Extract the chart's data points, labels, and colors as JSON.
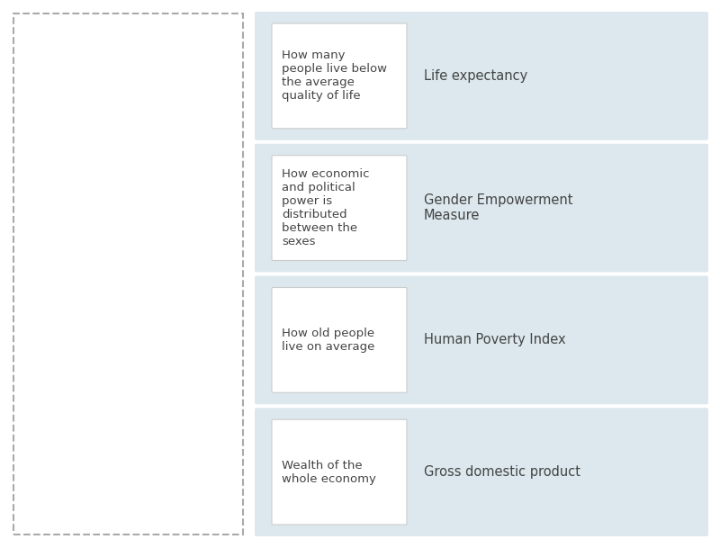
{
  "background_color": "#ffffff",
  "panel_bg": "#dce8ed",
  "card_bg": "#ffffff",
  "dashed_box_color": "#aaaaaa",
  "text_color": "#444444",
  "rows": [
    {
      "description": "How many\npeople live below\nthe average\nquality of life",
      "term": "Life expectancy"
    },
    {
      "description": "How economic\nand political\npower is\ndistributed\nbetween the\nsexes",
      "term": "Gender Empowerment\nMeasure"
    },
    {
      "description": "How old people\nlive on average",
      "term": "Human Poverty Index"
    },
    {
      "description": "Wealth of the\nwhole economy",
      "term": "Gross domestic product"
    }
  ],
  "fig_width": 8.0,
  "fig_height": 6.09,
  "dpi": 100
}
